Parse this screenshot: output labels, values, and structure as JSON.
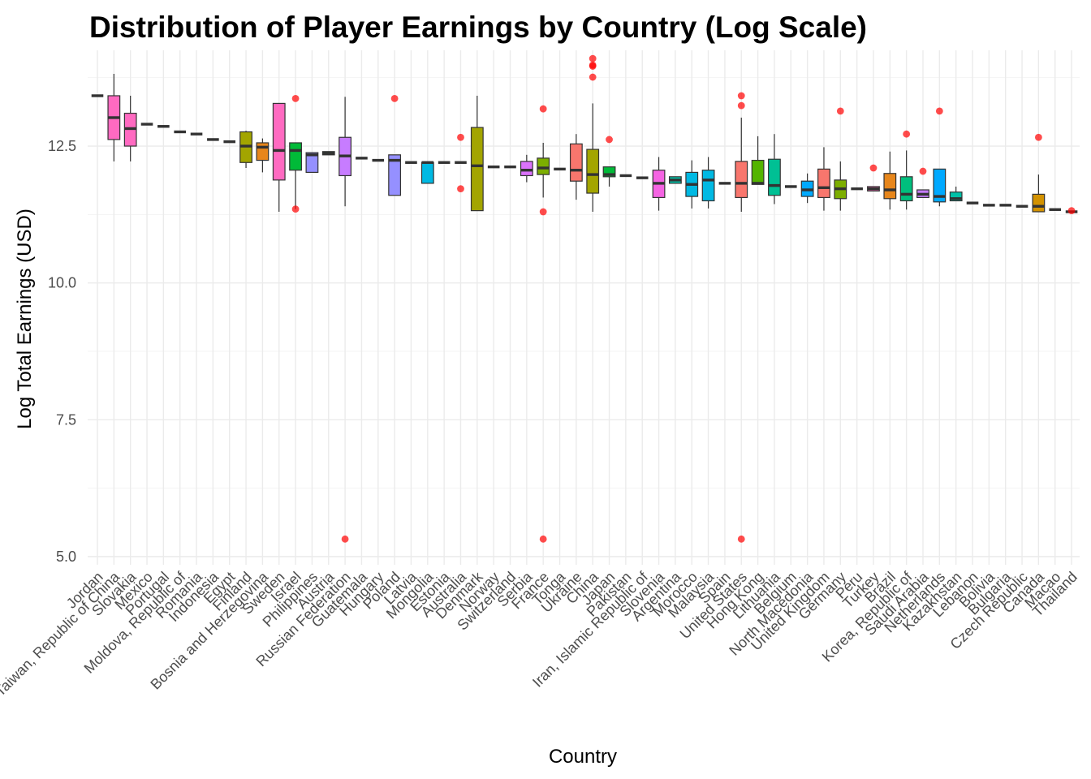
{
  "chart_data": {
    "type": "box",
    "title": "Distribution of Player Earnings by Country (Log Scale)",
    "xlabel": "Country",
    "ylabel": "Log Total Earnings (USD)",
    "ylim": [
      4.85,
      14.25
    ],
    "y_ticks": [
      5.0,
      7.5,
      10.0,
      12.5
    ],
    "y_tick_labels": [
      "5.0",
      "7.5",
      "10.0",
      "12.5"
    ],
    "grid": true,
    "legend": "none",
    "categories": [
      "Jordan",
      "Taiwan, Republic of China",
      "Slovakia",
      "Mexico",
      "Portugal",
      "Moldova, Republic of",
      "Romania",
      "Indonesia",
      "Egypt",
      "Finland",
      "Bosnia and Herzegovina",
      "Sweden",
      "Israel",
      "Philippines",
      "Austria",
      "Russian Federation",
      "Guatemala",
      "Hungary",
      "Poland",
      "Latvia",
      "Mongolia",
      "Estonia",
      "Australia",
      "Denmark",
      "Norway",
      "Switzerland",
      "Serbia",
      "France",
      "Tonga",
      "Ukraine",
      "China",
      "Japan",
      "Pakistan",
      "Iran, Islamic Republic of",
      "Slovenia",
      "Argentina",
      "Morocco",
      "Malaysia",
      "Spain",
      "United States",
      "Hong Kong",
      "Lithuania",
      "Belgium",
      "North Macedonia",
      "United Kingdom",
      "Germany",
      "Peru",
      "Turkey",
      "Brazil",
      "Korea, Republic of",
      "Saudi Arabia",
      "Netherlands",
      "Kazakhstan",
      "Lebanon",
      "Bolivia",
      "Bulgaria",
      "Czech Republic",
      "Canada",
      "Macao",
      "Thailand"
    ],
    "boxes": [
      {
        "min": 13.42,
        "q1": 13.42,
        "median": 13.42,
        "q3": 13.42,
        "max": 13.42,
        "outliers": [],
        "color": "#F8766D"
      },
      {
        "min": 12.22,
        "q1": 12.62,
        "median": 13.02,
        "q3": 13.42,
        "max": 13.82,
        "outliers": [],
        "color": "#FF6AC1"
      },
      {
        "min": 12.22,
        "q1": 12.5,
        "median": 12.82,
        "q3": 13.1,
        "max": 13.42,
        "outliers": [],
        "color": "#FF6AC1"
      },
      {
        "min": 12.9,
        "q1": 12.9,
        "median": 12.9,
        "q3": 12.9,
        "max": 12.9,
        "outliers": [],
        "color": "#E7861B"
      },
      {
        "min": 12.86,
        "q1": 12.86,
        "median": 12.86,
        "q3": 12.86,
        "max": 12.86,
        "outliers": [],
        "color": "#D39200"
      },
      {
        "min": 12.76,
        "q1": 12.76,
        "median": 12.76,
        "q3": 12.76,
        "max": 12.76,
        "outliers": [],
        "color": "#BB9D00"
      },
      {
        "min": 12.72,
        "q1": 12.72,
        "median": 12.72,
        "q3": 12.72,
        "max": 12.72,
        "outliers": [],
        "color": "#A3A500"
      },
      {
        "min": 12.62,
        "q1": 12.62,
        "median": 12.62,
        "q3": 12.62,
        "max": 12.62,
        "outliers": [],
        "color": "#85AD00"
      },
      {
        "min": 12.58,
        "q1": 12.58,
        "median": 12.58,
        "q3": 12.58,
        "max": 12.58,
        "outliers": [],
        "color": "#5BB300"
      },
      {
        "min": 12.1,
        "q1": 12.2,
        "median": 12.5,
        "q3": 12.76,
        "max": 12.78,
        "outliers": [],
        "color": "#A3A500"
      },
      {
        "min": 12.02,
        "q1": 12.24,
        "median": 12.48,
        "q3": 12.56,
        "max": 12.64,
        "outliers": [],
        "color": "#E7861B"
      },
      {
        "min": 11.3,
        "q1": 11.88,
        "median": 12.42,
        "q3": 13.28,
        "max": 13.28,
        "outliers": [],
        "color": "#FF6AC1"
      },
      {
        "min": 11.35,
        "q1": 12.06,
        "median": 12.42,
        "q3": 12.56,
        "max": 12.56,
        "outliers": [
          13.37,
          11.35
        ],
        "color": "#00BA38"
      },
      {
        "min": 12.02,
        "q1": 12.02,
        "median": 12.34,
        "q3": 12.38,
        "max": 12.38,
        "outliers": [],
        "color": "#9590FF"
      },
      {
        "min": 12.34,
        "q1": 12.34,
        "median": 12.37,
        "q3": 12.4,
        "max": 12.4,
        "outliers": [],
        "color": "#00BF7D"
      },
      {
        "min": 11.4,
        "q1": 11.96,
        "median": 12.32,
        "q3": 12.66,
        "max": 13.4,
        "outliers": [
          5.32
        ],
        "color": "#C77CFF"
      },
      {
        "min": 12.28,
        "q1": 12.28,
        "median": 12.28,
        "q3": 12.28,
        "max": 12.28,
        "outliers": [],
        "color": "#00C08B"
      },
      {
        "min": 12.24,
        "q1": 12.24,
        "median": 12.24,
        "q3": 12.24,
        "max": 12.24,
        "outliers": [],
        "color": "#00C1A7"
      },
      {
        "min": 11.6,
        "q1": 11.6,
        "median": 12.24,
        "q3": 12.34,
        "max": 12.34,
        "outliers": [
          13.37
        ],
        "color": "#9590FF"
      },
      {
        "min": 12.2,
        "q1": 12.2,
        "median": 12.2,
        "q3": 12.2,
        "max": 12.2,
        "outliers": [],
        "color": "#00BFC4"
      },
      {
        "min": 11.82,
        "q1": 11.82,
        "median": 12.2,
        "q3": 12.2,
        "max": 12.2,
        "outliers": [],
        "color": "#00B9E3"
      },
      {
        "min": 12.2,
        "q1": 12.2,
        "median": 12.2,
        "q3": 12.2,
        "max": 12.2,
        "outliers": [],
        "color": "#00B9E3"
      },
      {
        "min": 12.2,
        "q1": 12.2,
        "median": 12.2,
        "q3": 12.2,
        "max": 12.2,
        "outliers": [
          12.66,
          11.72
        ],
        "color": "#00ADFA"
      },
      {
        "min": 11.32,
        "q1": 11.32,
        "median": 12.14,
        "q3": 12.84,
        "max": 13.42,
        "outliers": [],
        "color": "#A3A500"
      },
      {
        "min": 12.12,
        "q1": 12.12,
        "median": 12.12,
        "q3": 12.12,
        "max": 12.12,
        "outliers": [],
        "color": "#619CFF"
      },
      {
        "min": 12.12,
        "q1": 12.12,
        "median": 12.12,
        "q3": 12.12,
        "max": 12.12,
        "outliers": [],
        "color": "#619CFF"
      },
      {
        "min": 11.84,
        "q1": 11.96,
        "median": 12.06,
        "q3": 12.22,
        "max": 12.34,
        "outliers": [],
        "color": "#DB72FB"
      },
      {
        "min": 11.56,
        "q1": 11.98,
        "median": 12.1,
        "q3": 12.28,
        "max": 12.56,
        "outliers": [
          13.18,
          11.3,
          5.32
        ],
        "color": "#7CAE00"
      },
      {
        "min": 12.08,
        "q1": 12.08,
        "median": 12.08,
        "q3": 12.08,
        "max": 12.08,
        "outliers": [],
        "color": "#F564E3"
      },
      {
        "min": 11.52,
        "q1": 11.86,
        "median": 12.06,
        "q3": 12.54,
        "max": 12.72,
        "outliers": [],
        "color": "#F8766D"
      },
      {
        "min": 11.3,
        "q1": 11.64,
        "median": 11.98,
        "q3": 12.44,
        "max": 13.28,
        "outliers": [
          14.1,
          13.98,
          13.96,
          13.76
        ],
        "color": "#A3A500"
      },
      {
        "min": 11.76,
        "q1": 11.94,
        "median": 11.98,
        "q3": 12.12,
        "max": 12.12,
        "outliers": [
          12.62
        ],
        "color": "#00BA38"
      },
      {
        "min": 11.96,
        "q1": 11.96,
        "median": 11.96,
        "q3": 11.96,
        "max": 11.96,
        "outliers": [],
        "color": "#00BF7D"
      },
      {
        "min": 11.92,
        "q1": 11.92,
        "median": 11.92,
        "q3": 11.92,
        "max": 11.92,
        "outliers": [],
        "color": "#00C08B"
      },
      {
        "min": 11.32,
        "q1": 11.56,
        "median": 11.82,
        "q3": 12.06,
        "max": 12.3,
        "outliers": [],
        "color": "#F564E3"
      },
      {
        "min": 11.82,
        "q1": 11.82,
        "median": 11.88,
        "q3": 11.94,
        "max": 11.94,
        "outliers": [],
        "color": "#00C1A7"
      },
      {
        "min": 11.36,
        "q1": 11.58,
        "median": 11.8,
        "q3": 12.02,
        "max": 12.24,
        "outliers": [],
        "color": "#00B9E3"
      },
      {
        "min": 11.36,
        "q1": 11.5,
        "median": 11.88,
        "q3": 12.06,
        "max": 12.3,
        "outliers": [],
        "color": "#00B9E3"
      },
      {
        "min": 11.82,
        "q1": 11.82,
        "median": 11.82,
        "q3": 11.82,
        "max": 11.82,
        "outliers": [],
        "color": "#00ADFA"
      },
      {
        "min": 11.3,
        "q1": 11.56,
        "median": 11.82,
        "q3": 12.22,
        "max": 13.02,
        "outliers": [
          13.42,
          13.24,
          5.32
        ],
        "color": "#F8766D"
      },
      {
        "min": 11.8,
        "q1": 11.8,
        "median": 11.82,
        "q3": 12.24,
        "max": 12.68,
        "outliers": [],
        "color": "#53B400"
      },
      {
        "min": 11.44,
        "q1": 11.6,
        "median": 11.78,
        "q3": 12.26,
        "max": 12.72,
        "outliers": [],
        "color": "#00C094"
      },
      {
        "min": 11.76,
        "q1": 11.76,
        "median": 11.76,
        "q3": 11.76,
        "max": 11.76,
        "outliers": [],
        "color": "#00C0B8"
      },
      {
        "min": 11.46,
        "q1": 11.58,
        "median": 11.7,
        "q3": 11.86,
        "max": 12.0,
        "outliers": [],
        "color": "#00A9FF"
      },
      {
        "min": 11.32,
        "q1": 11.56,
        "median": 11.74,
        "q3": 12.08,
        "max": 12.48,
        "outliers": [],
        "color": "#F8766D"
      },
      {
        "min": 11.32,
        "q1": 11.54,
        "median": 11.72,
        "q3": 11.88,
        "max": 12.22,
        "outliers": [
          13.14
        ],
        "color": "#7CAE00"
      },
      {
        "min": 11.72,
        "q1": 11.72,
        "median": 11.72,
        "q3": 11.72,
        "max": 11.72,
        "outliers": [],
        "color": "#00BD5C"
      },
      {
        "min": 11.68,
        "q1": 11.68,
        "median": 11.72,
        "q3": 11.76,
        "max": 11.76,
        "outliers": [
          12.1
        ],
        "color": "#FF62BC"
      },
      {
        "min": 11.34,
        "q1": 11.54,
        "median": 11.7,
        "q3": 12.0,
        "max": 12.4,
        "outliers": [],
        "color": "#E7861B"
      },
      {
        "min": 11.34,
        "q1": 11.5,
        "median": 11.62,
        "q3": 11.94,
        "max": 12.42,
        "outliers": [
          12.72
        ],
        "color": "#00BF7D"
      },
      {
        "min": 11.56,
        "q1": 11.56,
        "median": 11.62,
        "q3": 11.7,
        "max": 11.7,
        "outliers": [
          12.04
        ],
        "color": "#C77CFF"
      },
      {
        "min": 11.4,
        "q1": 11.48,
        "median": 11.58,
        "q3": 12.08,
        "max": 12.08,
        "outliers": [
          13.14
        ],
        "color": "#00A9FF"
      },
      {
        "min": 11.5,
        "q1": 11.5,
        "median": 11.54,
        "q3": 11.66,
        "max": 11.76,
        "outliers": [],
        "color": "#00C1A7"
      },
      {
        "min": 11.46,
        "q1": 11.46,
        "median": 11.46,
        "q3": 11.46,
        "max": 11.46,
        "outliers": [],
        "color": "#00BFC4"
      },
      {
        "min": 11.42,
        "q1": 11.42,
        "median": 11.42,
        "q3": 11.42,
        "max": 11.42,
        "outliers": [],
        "color": "#00B8E7"
      },
      {
        "min": 11.42,
        "q1": 11.42,
        "median": 11.42,
        "q3": 11.42,
        "max": 11.42,
        "outliers": [],
        "color": "#00B8E7"
      },
      {
        "min": 11.4,
        "q1": 11.4,
        "median": 11.4,
        "q3": 11.4,
        "max": 11.4,
        "outliers": [],
        "color": "#00A5FF"
      },
      {
        "min": 11.3,
        "q1": 11.3,
        "median": 11.4,
        "q3": 11.62,
        "max": 11.98,
        "outliers": [
          12.66
        ],
        "color": "#D39200"
      },
      {
        "min": 11.34,
        "q1": 11.34,
        "median": 11.34,
        "q3": 11.34,
        "max": 11.34,
        "outliers": [],
        "color": "#FD61D1"
      },
      {
        "min": 11.3,
        "q1": 11.3,
        "median": 11.3,
        "q3": 11.3,
        "max": 11.3,
        "outliers": [
          11.32
        ],
        "color": "#FF64B0"
      }
    ]
  }
}
